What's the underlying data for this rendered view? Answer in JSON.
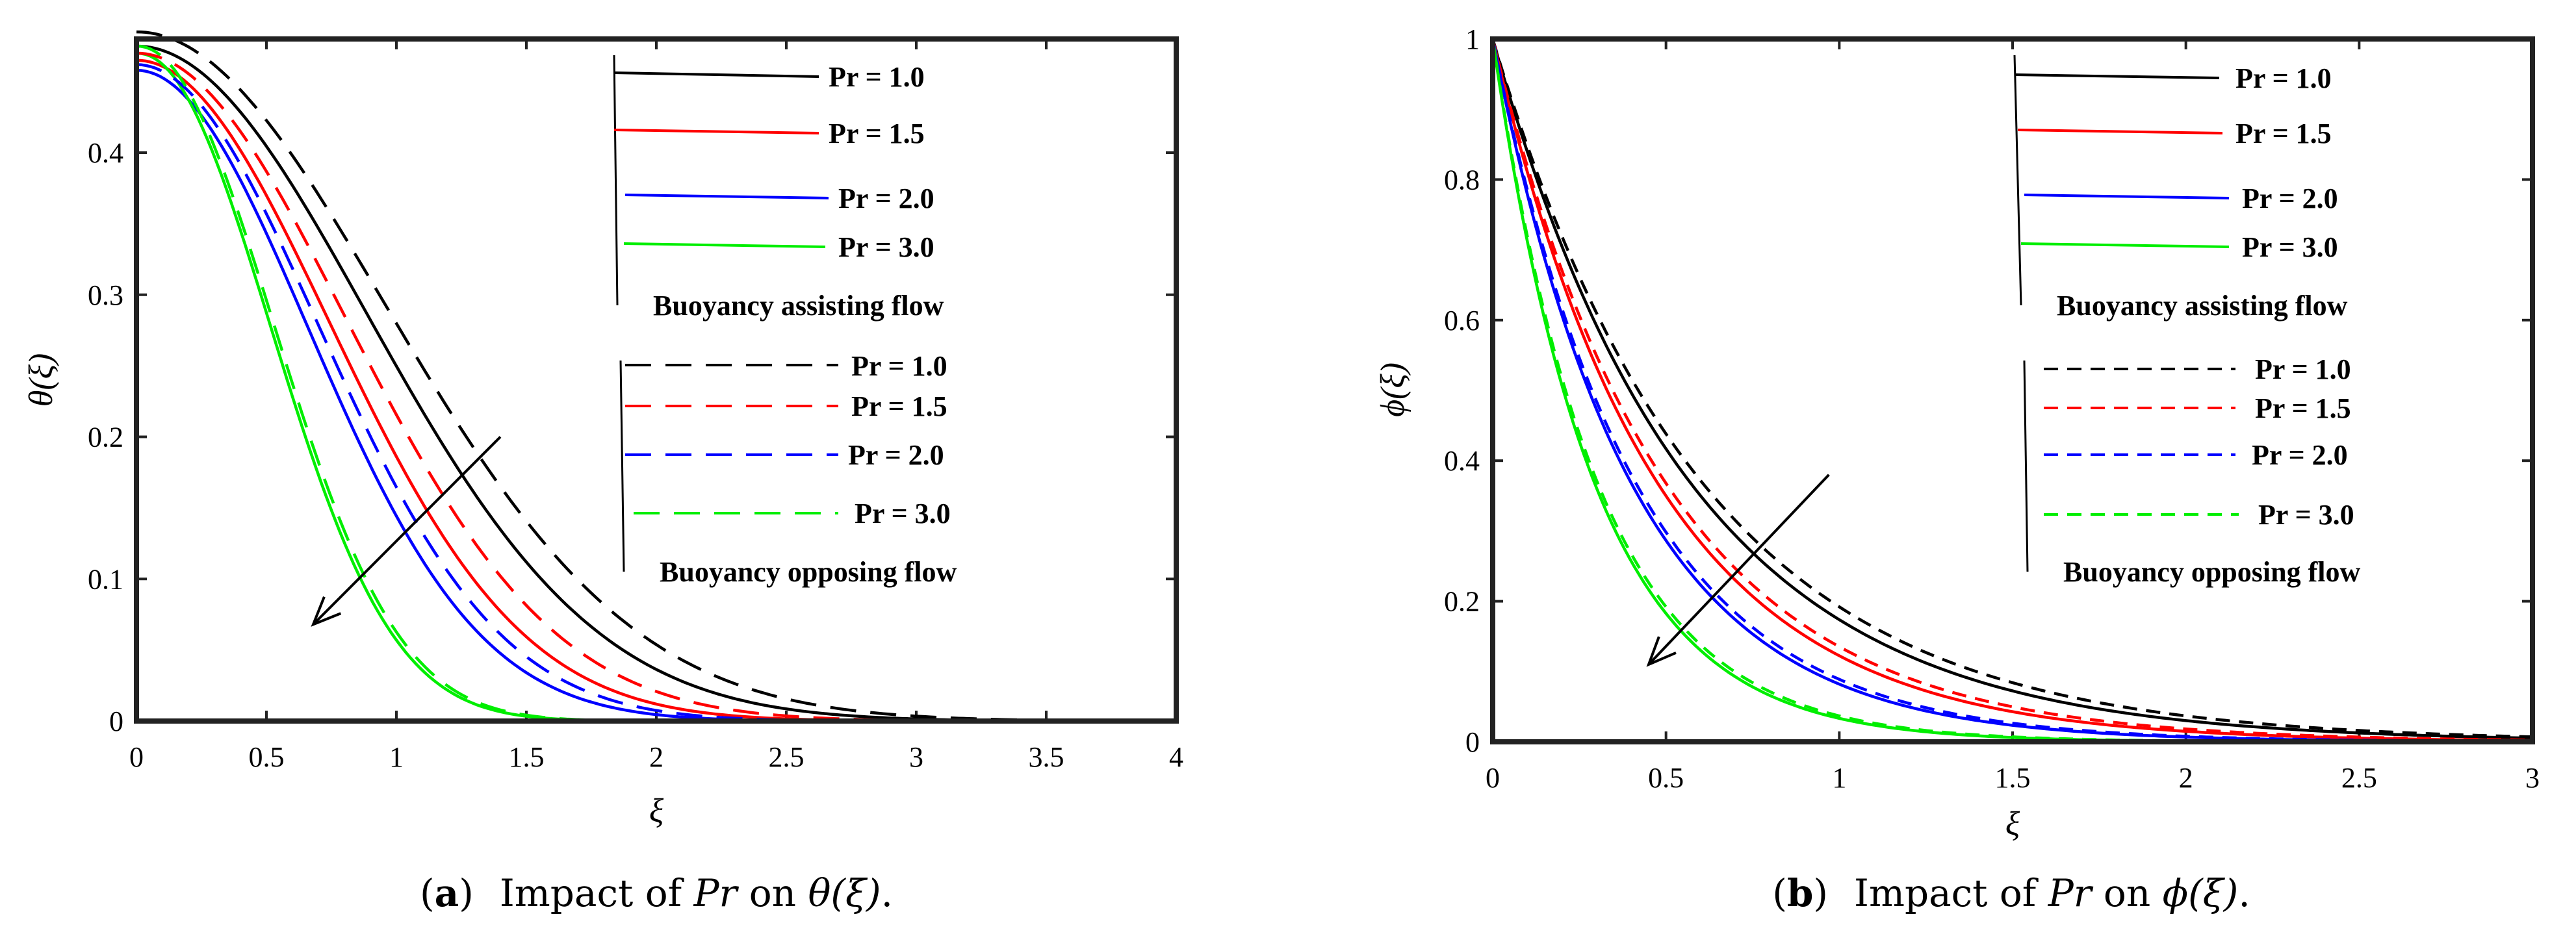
{
  "chart_data": [
    {
      "id": "a",
      "type": "line",
      "caption": {
        "label": "a",
        "text": "Impact of ",
        "var": "Pr",
        "mid": " on ",
        "func": "θ(ξ)",
        "end": "."
      },
      "xlabel": "ξ",
      "ylabel": "θ(ξ)",
      "xlim": [
        0,
        4
      ],
      "ylim": [
        0,
        0.48
      ],
      "xticks": [
        0,
        0.5,
        1,
        1.5,
        2,
        2.5,
        3,
        3.5,
        4
      ],
      "xtick_labels": [
        "0",
        "0.5",
        "1",
        "1.5",
        "2",
        "2.5",
        "3",
        "3.5",
        "4"
      ],
      "yticks": [
        0,
        0.1,
        0.2,
        0.3,
        0.4
      ],
      "ytick_labels": [
        "0",
        "0.1",
        "0.2",
        "0.3",
        "0.4"
      ],
      "legend_groups": [
        {
          "title": "Buoyancy assisting flow",
          "style": "solid",
          "entries": [
            "Pr = 1.0",
            "Pr = 1.5",
            "Pr = 2.0",
            "Pr = 3.0"
          ]
        },
        {
          "title": "Buoyancy opposing flow",
          "style": "dashed",
          "entries": [
            "Pr = 1.0",
            "Pr = 1.5",
            "Pr = 2.0",
            "Pr = 3.0"
          ]
        }
      ],
      "colors": [
        "#000000",
        "#ff0000",
        "#0000ff",
        "#00ee00"
      ],
      "series": [
        {
          "name": "Pr = 1.0 assisting",
          "color": "#000000",
          "style": "solid",
          "y0": 0.475,
          "d": 1.85,
          "n": 2.0
        },
        {
          "name": "Pr = 1.5 assisting",
          "color": "#ff0000",
          "style": "solid",
          "y0": 0.465,
          "d": 1.55,
          "n": 2.0
        },
        {
          "name": "Pr = 2.0 assisting",
          "color": "#0000ff",
          "style": "solid",
          "y0": 0.458,
          "d": 1.38,
          "n": 2.0
        },
        {
          "name": "Pr = 3.0 assisting",
          "color": "#00ee00",
          "style": "solid",
          "y0": 0.47,
          "d": 1.02,
          "n": 2.1
        },
        {
          "name": "Pr = 1.0 opposing",
          "color": "#000000",
          "style": "dashed",
          "y0": 0.485,
          "d": 2.0,
          "n": 2.0
        },
        {
          "name": "Pr = 1.5 opposing",
          "color": "#ff0000",
          "style": "dashed",
          "y0": 0.47,
          "d": 1.68,
          "n": 2.0
        },
        {
          "name": "Pr = 2.0 opposing",
          "color": "#0000ff",
          "style": "dashed",
          "y0": 0.462,
          "d": 1.46,
          "n": 2.0
        },
        {
          "name": "Pr = 3.0 opposing",
          "color": "#00ee00",
          "style": "dashed",
          "y0": 0.475,
          "d": 1.04,
          "n": 2.1
        }
      ],
      "arrow": {
        "from": [
          1.4,
          0.2
        ],
        "to": [
          0.68,
          0.068
        ]
      }
    },
    {
      "id": "b",
      "type": "line",
      "caption": {
        "label": "b",
        "text": "Impact of ",
        "var": "Pr",
        "mid": " on ",
        "func": "ϕ(ξ)",
        "end": "."
      },
      "xlabel": "ξ",
      "ylabel": "ϕ(ξ)",
      "xlim": [
        0,
        3
      ],
      "ylim": [
        0,
        1
      ],
      "xticks": [
        0,
        0.5,
        1,
        1.5,
        2,
        2.5,
        3
      ],
      "xtick_labels": [
        "0",
        "0.5",
        "1",
        "1.5",
        "2",
        "2.5",
        "3"
      ],
      "yticks": [
        0,
        0.2,
        0.4,
        0.6,
        0.8,
        1
      ],
      "ytick_labels": [
        "0",
        "0.2",
        "0.4",
        "0.6",
        "0.8",
        "1"
      ],
      "legend_groups": [
        {
          "title": "Buoyancy assisting flow",
          "style": "solid",
          "entries": [
            "Pr = 1.0",
            "Pr = 1.5",
            "Pr = 2.0",
            "Pr = 3.0"
          ]
        },
        {
          "title": "Buoyancy opposing flow",
          "style": "dashed",
          "entries": [
            "Pr = 1.0",
            "Pr = 1.5",
            "Pr = 2.0",
            "Pr = 3.0"
          ]
        }
      ],
      "colors": [
        "#000000",
        "#ff0000",
        "#0000ff",
        "#00ee00"
      ],
      "series": [
        {
          "name": "Pr = 1.0 assisting",
          "color": "#000000",
          "style": "solid",
          "y0": 1.0,
          "k": 1.75
        },
        {
          "name": "Pr = 1.5 assisting",
          "color": "#ff0000",
          "style": "solid",
          "y0": 1.0,
          "k": 2.1
        },
        {
          "name": "Pr = 2.0 assisting",
          "color": "#0000ff",
          "style": "solid",
          "y0": 1.0,
          "k": 2.5
        },
        {
          "name": "Pr = 3.0 assisting",
          "color": "#00ee00",
          "style": "solid",
          "y0": 1.0,
          "k": 3.4
        },
        {
          "name": "Pr = 1.0 opposing",
          "color": "#000000",
          "style": "dashed",
          "y0": 1.0,
          "k": 1.65
        },
        {
          "name": "Pr = 1.5 opposing",
          "color": "#ff0000",
          "style": "dashed",
          "y0": 1.0,
          "k": 2.0
        },
        {
          "name": "Pr = 2.0 opposing",
          "color": "#0000ff",
          "style": "dashed",
          "y0": 1.0,
          "k": 2.42
        },
        {
          "name": "Pr = 3.0 opposing",
          "color": "#00ee00",
          "style": "dashed",
          "y0": 1.0,
          "k": 3.3
        }
      ],
      "arrow": {
        "from": [
          0.97,
          0.38
        ],
        "to": [
          0.45,
          0.11
        ]
      }
    }
  ]
}
